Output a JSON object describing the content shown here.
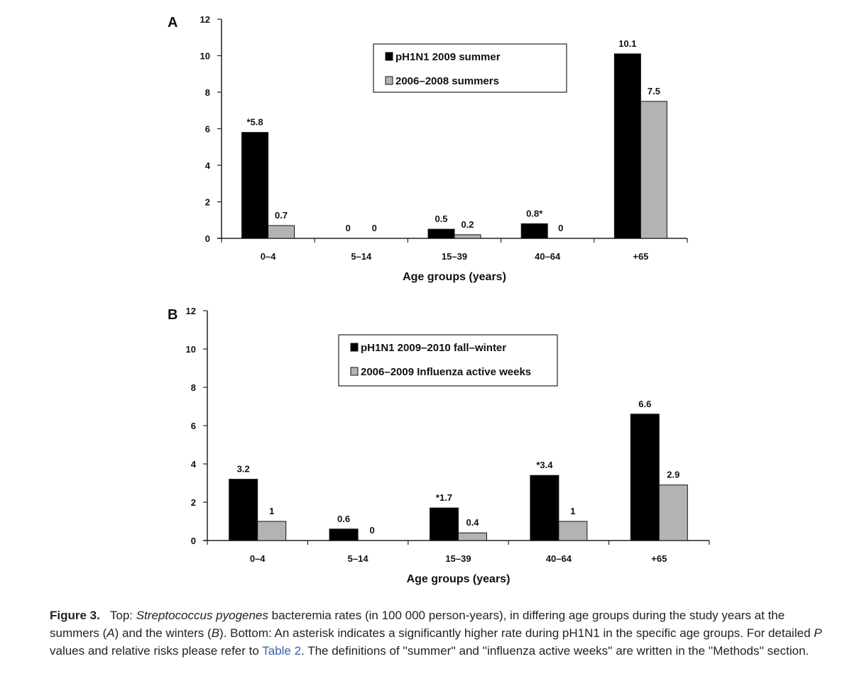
{
  "chart_data": [
    {
      "panel": "A",
      "type": "bar",
      "categories": [
        "0–4",
        "5–14",
        "15–39",
        "40–64",
        "+65"
      ],
      "series": [
        {
          "name": "pH1N1 2009 summer",
          "color": "#000000",
          "values": [
            5.8,
            0,
            0.5,
            0.8,
            10.1
          ],
          "labels": [
            "*5.8",
            "0",
            "0.5",
            "0.8*",
            "10.1"
          ]
        },
        {
          "name": "2006–2008 summers",
          "color": "#b3b3b3",
          "values": [
            0.7,
            0,
            0.2,
            0,
            7.5
          ],
          "labels": [
            "0.7",
            "0",
            "0.2",
            "0",
            "7.5"
          ]
        }
      ],
      "yticks": [
        "0",
        "2",
        "4",
        "6",
        "8",
        "10",
        "12"
      ],
      "ylim": [
        0,
        12
      ],
      "xlabel": "Age groups (years)",
      "ylabel": "",
      "legend_position": "top-center"
    },
    {
      "panel": "B",
      "type": "bar",
      "categories": [
        "0–4",
        "5–14",
        "15–39",
        "40–64",
        "+65"
      ],
      "series": [
        {
          "name": "pH1N1 2009–2010 fall–winter",
          "color": "#000000",
          "values": [
            3.2,
            0.6,
            1.7,
            3.4,
            6.6
          ],
          "labels": [
            "3.2",
            "0.6",
            "*1.7",
            "*3.4",
            "6.6"
          ]
        },
        {
          "name": "2006–2009 Influenza active weeks",
          "color": "#b3b3b3",
          "values": [
            1,
            0,
            0.4,
            1,
            2.9
          ],
          "labels": [
            "1",
            "0",
            "0.4",
            "1",
            "2.9"
          ]
        }
      ],
      "yticks": [
        "0",
        "2",
        "4",
        "6",
        "8",
        "10",
        "12"
      ],
      "ylim": [
        0,
        12
      ],
      "xlabel": "Age groups (years)",
      "ylabel": "",
      "legend_position": "top-center"
    }
  ],
  "caption": {
    "label": "Figure 3.",
    "part1": "Top: ",
    "species": "Streptococcus pyogenes",
    "part2": " bacteremia rates (in 100 000 person-years), in differing age groups during the study years at the summers (",
    "a": "A",
    "part3": ") and the winters (",
    "b": "B",
    "part4": "). Bottom: An asterisk indicates a significantly higher rate during pH1N1 in the specific age groups. For detailed ",
    "p": "P",
    "part5": " values and relative risks please refer to ",
    "link": "Table 2",
    "part6": ". The definitions of ''summer'' and ''influenza active weeks'' are written in the ''Methods'' section."
  }
}
